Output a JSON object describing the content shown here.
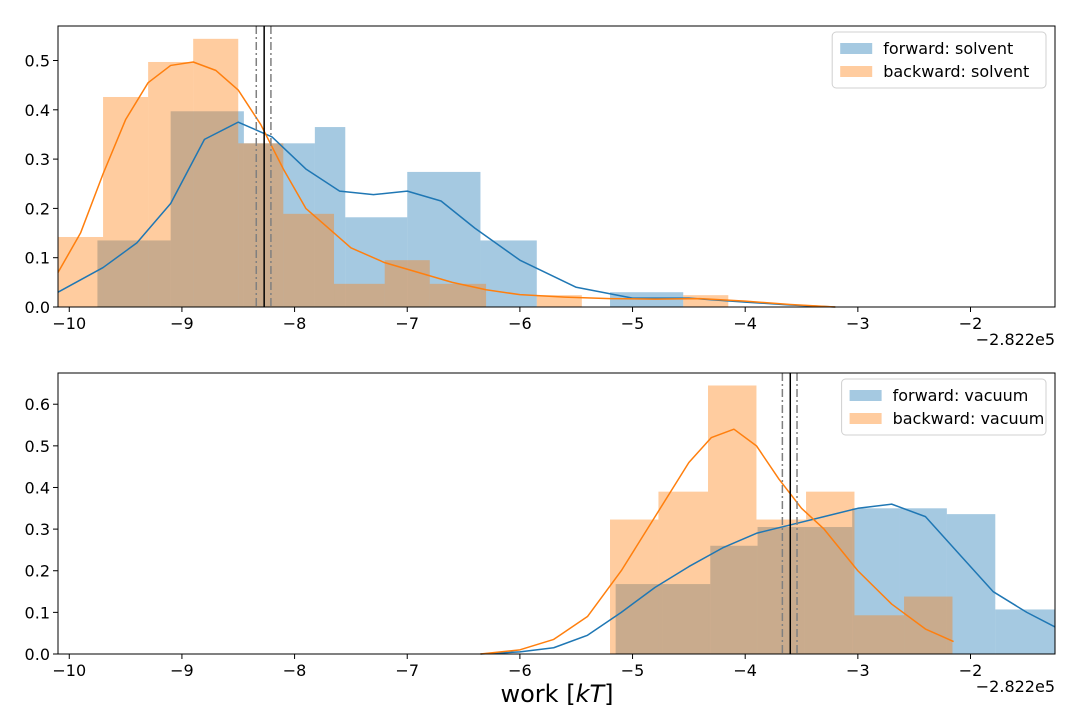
{
  "figure": {
    "xlabel_main": "work [",
    "xlabel_italic": "kT",
    "xlabel_end": "]"
  },
  "colors": {
    "forward": "#1f77b4",
    "backward": "#ff7f0e",
    "mean_line": "#000000",
    "ci_line": "#808080"
  },
  "chart_data": [
    {
      "type": "bar",
      "title": "",
      "xlabel": "",
      "ylabel": "",
      "offset_text": "−2.822e5",
      "xlim": [
        -10.1,
        -1.25
      ],
      "ylim": [
        0,
        0.57
      ],
      "xticks": [
        -10,
        -9,
        -8,
        -7,
        -6,
        -5,
        -4,
        -3,
        -2
      ],
      "yticks": [
        0.0,
        0.1,
        0.2,
        0.3,
        0.4,
        0.5
      ],
      "grid": false,
      "legend_position": "top-right",
      "mean": -8.27,
      "ci": [
        -8.34,
        -8.21
      ],
      "series": [
        {
          "name": "forward: solvent",
          "histogram": {
            "bins": [
              -9.75,
              -9.1,
              -8.45,
              -7.82,
              -7.55,
              -7.0,
              -6.35,
              -5.85,
              -5.2,
              -4.55
            ],
            "density": [
              0.135,
              0.397,
              0.332,
              0.365,
              0.182,
              0.274,
              0.135,
              0.0,
              0.03
            ]
          },
          "kde": {
            "x": [
              -10.1,
              -9.7,
              -9.4,
              -9.1,
              -8.8,
              -8.5,
              -8.2,
              -7.9,
              -7.6,
              -7.3,
              -7.0,
              -6.7,
              -6.4,
              -6.0,
              -5.5,
              -5.0,
              -4.5,
              -4.0,
              -3.6,
              -3.2
            ],
            "y": [
              0.03,
              0.08,
              0.13,
              0.21,
              0.34,
              0.375,
              0.345,
              0.28,
              0.235,
              0.228,
              0.235,
              0.215,
              0.16,
              0.095,
              0.04,
              0.018,
              0.018,
              0.01,
              0.004,
              0.0
            ]
          }
        },
        {
          "name": "backward: solvent",
          "histogram": {
            "bins": [
              -10.1,
              -9.7,
              -9.3,
              -8.9,
              -8.5,
              -8.1,
              -7.65,
              -7.2,
              -6.8,
              -6.3,
              -5.85,
              -5.45,
              -4.55,
              -4.15
            ],
            "density": [
              0.142,
              0.426,
              0.497,
              0.544,
              0.332,
              0.189,
              0.047,
              0.095,
              0.047,
              0.0,
              0.024,
              0.0,
              0.024
            ]
          },
          "kde": {
            "x": [
              -10.1,
              -9.9,
              -9.7,
              -9.5,
              -9.3,
              -9.1,
              -8.9,
              -8.7,
              -8.5,
              -8.3,
              -8.1,
              -7.9,
              -7.7,
              -7.5,
              -7.2,
              -6.9,
              -6.6,
              -6.3,
              -6.0,
              -5.6,
              -5.2,
              -4.8,
              -4.4,
              -4.0,
              -3.6,
              -3.2
            ],
            "y": [
              0.07,
              0.15,
              0.27,
              0.38,
              0.455,
              0.49,
              0.497,
              0.48,
              0.44,
              0.37,
              0.28,
              0.2,
              0.16,
              0.12,
              0.09,
              0.07,
              0.05,
              0.035,
              0.025,
              0.02,
              0.017,
              0.016,
              0.017,
              0.012,
              0.005,
              0.0
            ]
          }
        }
      ]
    },
    {
      "type": "bar",
      "title": "",
      "xlabel": "work [kT]",
      "ylabel": "",
      "offset_text": "−2.822e5",
      "xlim": [
        -10.1,
        -1.25
      ],
      "ylim": [
        0,
        0.675
      ],
      "xticks": [
        -10,
        -9,
        -8,
        -7,
        -6,
        -5,
        -4,
        -3,
        -2
      ],
      "yticks": [
        0.0,
        0.1,
        0.2,
        0.3,
        0.4,
        0.5,
        0.6
      ],
      "grid": false,
      "legend_position": "top-right",
      "mean": -3.6,
      "ci": [
        -3.67,
        -3.54
      ],
      "series": [
        {
          "name": "forward: vacuum",
          "histogram": {
            "bins": [
              -5.15,
              -4.73,
              -4.31,
              -3.89,
              -3.47,
              -3.05,
              -2.63,
              -2.21,
              -1.78,
              -1.25
            ],
            "density": [
              0.168,
              0.168,
              0.26,
              0.305,
              0.305,
              0.35,
              0.35,
              0.336,
              0.107
            ]
          },
          "kde": {
            "x": [
              -6.35,
              -6.0,
              -5.7,
              -5.4,
              -5.1,
              -4.8,
              -4.5,
              -4.2,
              -3.9,
              -3.6,
              -3.3,
              -3.0,
              -2.7,
              -2.4,
              -2.1,
              -1.8,
              -1.5,
              -1.25
            ],
            "y": [
              0.0,
              0.005,
              0.015,
              0.045,
              0.1,
              0.16,
              0.21,
              0.255,
              0.29,
              0.31,
              0.33,
              0.35,
              0.36,
              0.33,
              0.24,
              0.15,
              0.1,
              0.065
            ]
          }
        },
        {
          "name": "backward: vacuum",
          "histogram": {
            "bins": [
              -5.2,
              -4.77,
              -4.33,
              -3.9,
              -3.46,
              -3.03,
              -2.59,
              -2.16
            ],
            "density": [
              0.323,
              0.39,
              0.645,
              0.323,
              0.39,
              0.093,
              0.138
            ]
          },
          "kde": {
            "x": [
              -6.35,
              -6.0,
              -5.7,
              -5.4,
              -5.1,
              -4.8,
              -4.5,
              -4.3,
              -4.1,
              -3.9,
              -3.7,
              -3.5,
              -3.3,
              -3.0,
              -2.7,
              -2.4,
              -2.15
            ],
            "y": [
              0.0,
              0.01,
              0.035,
              0.09,
              0.2,
              0.33,
              0.46,
              0.52,
              0.54,
              0.5,
              0.42,
              0.35,
              0.3,
              0.2,
              0.12,
              0.06,
              0.03
            ]
          }
        }
      ]
    }
  ]
}
